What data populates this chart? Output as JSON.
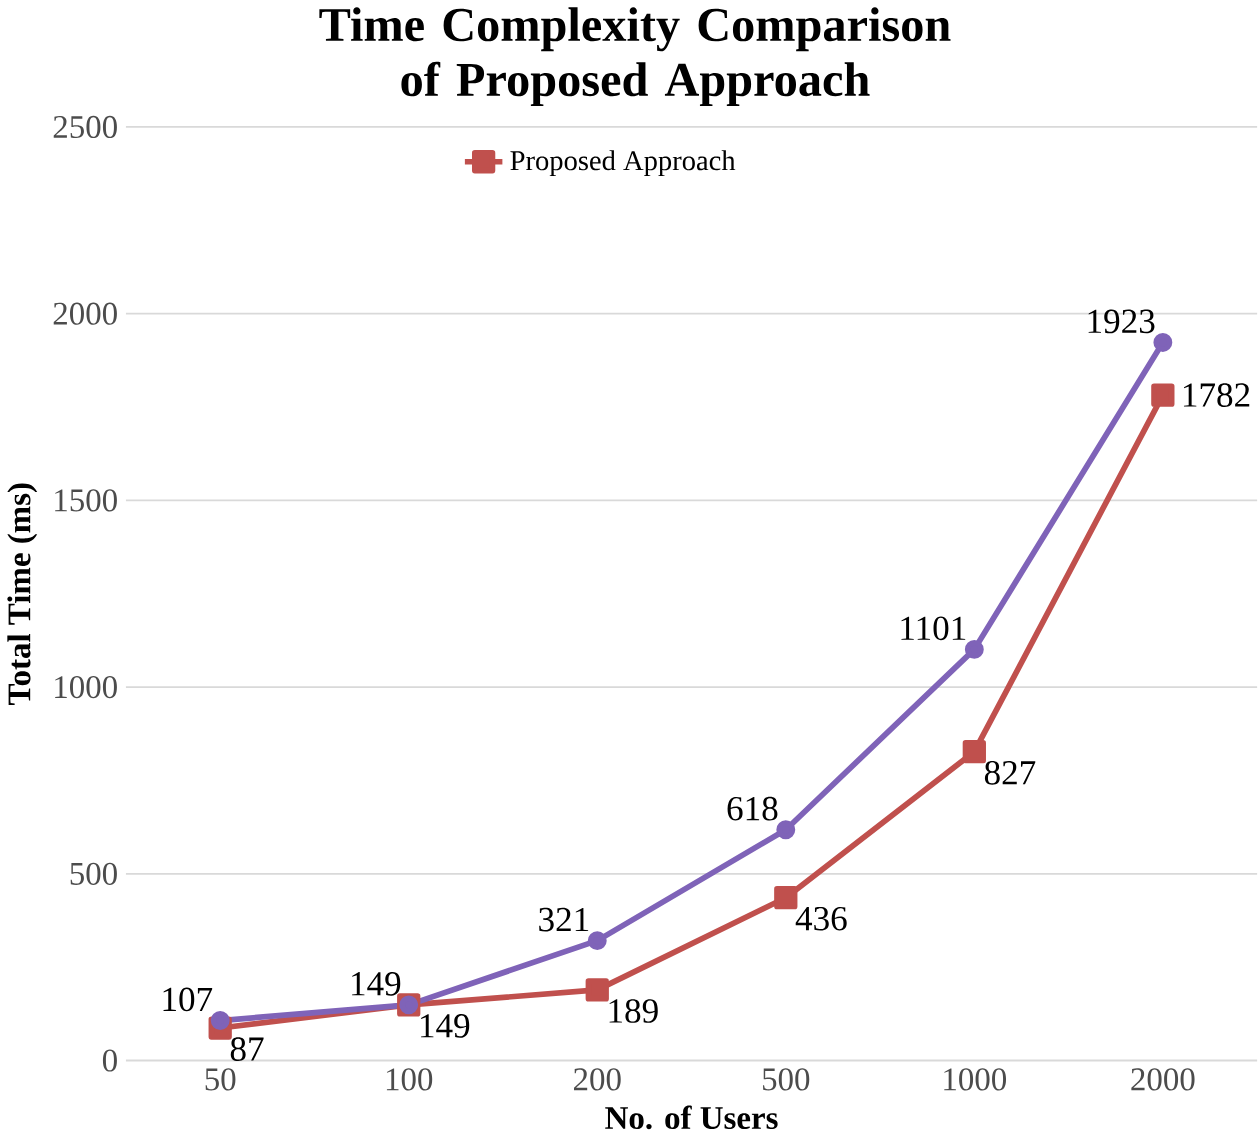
{
  "chart_data": {
    "type": "line",
    "title": "Time Complexity Comparison of Proposed Approach",
    "xlabel": "No. of Users",
    "ylabel": "Total Time (ms)",
    "categories": [
      "50",
      "100",
      "200",
      "500",
      "1000",
      "2000"
    ],
    "series": [
      {
        "name": "Proposed Approach",
        "color": "#c0504d",
        "marker": "square",
        "values": [
          87,
          149,
          189,
          436,
          827,
          1782
        ]
      },
      {
        "color": "#7f63b8",
        "marker": "circle",
        "values": [
          107,
          149,
          321,
          618,
          1101,
          1923
        ]
      }
    ],
    "ylim": [
      0,
      2500
    ],
    "yticks": [
      0,
      500,
      1000,
      1500,
      2000,
      2500
    ],
    "grid": "y",
    "legend": "top",
    "data_labels": true,
    "line_style": "solid"
  }
}
